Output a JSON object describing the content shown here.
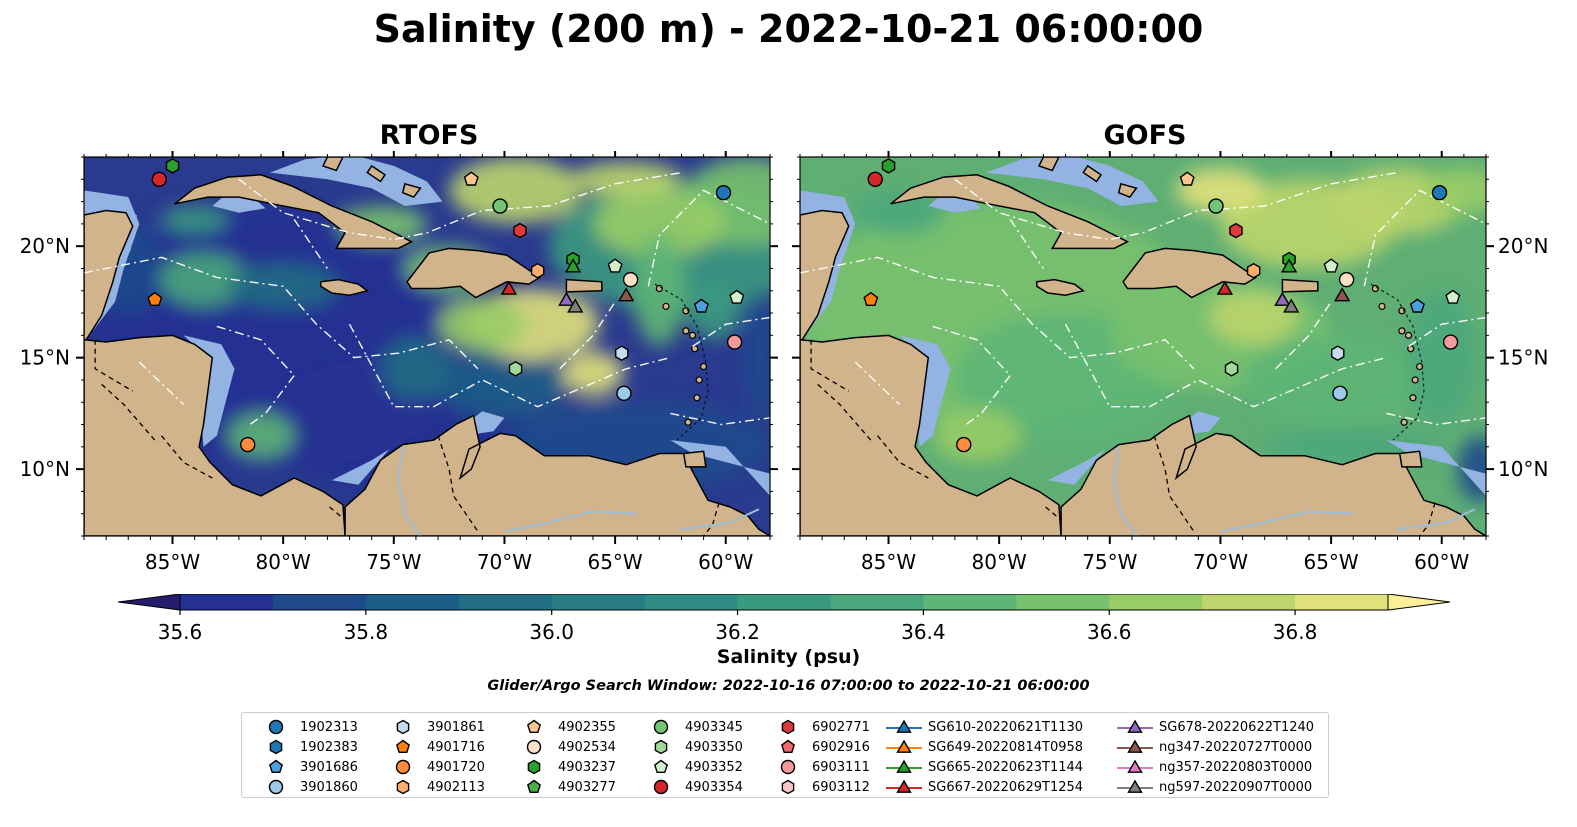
{
  "title": "Salinity (200 m) - 2022-10-21 06:00:00",
  "panels": [
    {
      "title": "RTOFS"
    },
    {
      "title": "GOFS"
    }
  ],
  "map": {
    "lon_range": [
      -89,
      -58
    ],
    "lat_range": [
      7,
      24
    ],
    "x_ticks": [
      "85°W",
      "80°W",
      "75°W",
      "70°W",
      "65°W",
      "60°W"
    ],
    "y_ticks": [
      "20°N",
      "15°N",
      "10°N"
    ],
    "colors": {
      "land": "#d2b48c",
      "shelf": "#93b3e3",
      "coast": "#000000"
    }
  },
  "colorbar": {
    "label": "Salinity (psu)",
    "range": [
      35.6,
      36.9
    ],
    "extend": "both",
    "ticks": [
      "35.6",
      "35.8",
      "36.0",
      "36.2",
      "36.4",
      "36.6",
      "36.8"
    ],
    "colors": [
      "#261c6e",
      "#253192",
      "#1e4a8c",
      "#1c5d86",
      "#206d84",
      "#287c84",
      "#2f8b83",
      "#3a9a80",
      "#4aa77b",
      "#5db576",
      "#78c16e",
      "#98cc66",
      "#bdd56c",
      "#e1e17c",
      "#fdef9a"
    ]
  },
  "search_window": "Glider/Argo Search Window: 2022-10-16 07:00:00 to 2022-10-21 06:00:00",
  "legend": [
    {
      "label": "1902313",
      "marker": "circle",
      "color": "#1f77b4"
    },
    {
      "label": "1902383",
      "marker": "hexagon",
      "color": "#1f77b4"
    },
    {
      "label": "3901686",
      "marker": "pentagon",
      "color": "#4aa0de"
    },
    {
      "label": "3901860",
      "marker": "circle",
      "color": "#9ecae9"
    },
    {
      "label": "3901861",
      "marker": "hexagon",
      "color": "#c6dbef"
    },
    {
      "label": "4901716",
      "marker": "pentagon",
      "color": "#ff7f0e"
    },
    {
      "label": "4901720",
      "marker": "circle",
      "color": "#fd8d3c"
    },
    {
      "label": "4902113",
      "marker": "hexagon",
      "color": "#fdae6b"
    },
    {
      "label": "4902355",
      "marker": "pentagon",
      "color": "#fdc690"
    },
    {
      "label": "4902534",
      "marker": "circle",
      "color": "#fde0c5"
    },
    {
      "label": "4903237",
      "marker": "hexagon",
      "color": "#2ca02c"
    },
    {
      "label": "4903277",
      "marker": "pentagon",
      "color": "#4caf4c"
    },
    {
      "label": "4903345",
      "marker": "circle",
      "color": "#74c476"
    },
    {
      "label": "4903350",
      "marker": "hexagon",
      "color": "#a1d99b"
    },
    {
      "label": "4903352",
      "marker": "pentagon",
      "color": "#d3f0cd"
    },
    {
      "label": "4903354",
      "marker": "circle",
      "color": "#d62728"
    },
    {
      "label": "6902771",
      "marker": "hexagon",
      "color": "#de3a3b"
    },
    {
      "label": "6902916",
      "marker": "pentagon",
      "color": "#f26b6b"
    },
    {
      "label": "6903111",
      "marker": "circle",
      "color": "#f49a9a"
    },
    {
      "label": "6903112",
      "marker": "hexagon",
      "color": "#fcc5c5"
    },
    {
      "label": "SG610-20220621T1130",
      "marker": "triangle",
      "color": "#1f77b4"
    },
    {
      "label": "SG649-20220814T0958",
      "marker": "triangle",
      "color": "#ff7f0e"
    },
    {
      "label": "SG665-20220623T1144",
      "marker": "triangle",
      "color": "#2ca02c"
    },
    {
      "label": "SG667-20220629T1254",
      "marker": "triangle",
      "color": "#d62728"
    },
    {
      "label": "SG678-20220622T1240",
      "marker": "triangle",
      "color": "#9467bd"
    },
    {
      "label": "ng347-20220727T0000",
      "marker": "triangle",
      "color": "#8c564b"
    },
    {
      "label": "ng357-20220803T0000",
      "marker": "triangle",
      "color": "#e377c2"
    },
    {
      "label": "ng597-20220907T0000",
      "marker": "triangle",
      "color": "#7f7f7f"
    }
  ],
  "platforms": [
    {
      "id": "4903354",
      "lon": -85.6,
      "lat": 23.0
    },
    {
      "id": "4903237",
      "lon": -85.0,
      "lat": 23.6
    },
    {
      "id": "4901716",
      "lon": -85.8,
      "lat": 17.6
    },
    {
      "id": "4901720",
      "lon": -81.6,
      "lat": 11.1
    },
    {
      "id": "4902355",
      "lon": -71.5,
      "lat": 23.0
    },
    {
      "id": "4903345",
      "lon": -70.2,
      "lat": 21.8
    },
    {
      "id": "6902771",
      "lon": -69.3,
      "lat": 20.7
    },
    {
      "id": "4903237",
      "lon": -66.9,
      "lat": 19.4
    },
    {
      "id": "SG665-20220623T1144",
      "lon": -66.9,
      "lat": 19.1
    },
    {
      "id": "4903352",
      "lon": -65.0,
      "lat": 19.1
    },
    {
      "id": "4902534",
      "lon": -64.3,
      "lat": 18.5
    },
    {
      "id": "4902113",
      "lon": -68.5,
      "lat": 18.9
    },
    {
      "id": "SG667-20220629T1254",
      "lon": -69.8,
      "lat": 18.1
    },
    {
      "id": "SG678-20220622T1240",
      "lon": -67.2,
      "lat": 17.6
    },
    {
      "id": "ng597-20220907T0000",
      "lon": -66.8,
      "lat": 17.3
    },
    {
      "id": "ng347-20220727T0000",
      "lon": -64.5,
      "lat": 17.8
    },
    {
      "id": "1902313",
      "lon": -60.1,
      "lat": 22.4
    },
    {
      "id": "3901686",
      "lon": -61.1,
      "lat": 17.3
    },
    {
      "id": "4903352",
      "lon": -59.5,
      "lat": 17.7
    },
    {
      "id": "3901861",
      "lon": -64.7,
      "lat": 15.2
    },
    {
      "id": "4903350",
      "lon": -69.5,
      "lat": 14.5
    },
    {
      "id": "3901860",
      "lon": -64.6,
      "lat": 13.4
    },
    {
      "id": "6903111",
      "lon": -59.6,
      "lat": 15.7
    }
  ]
}
